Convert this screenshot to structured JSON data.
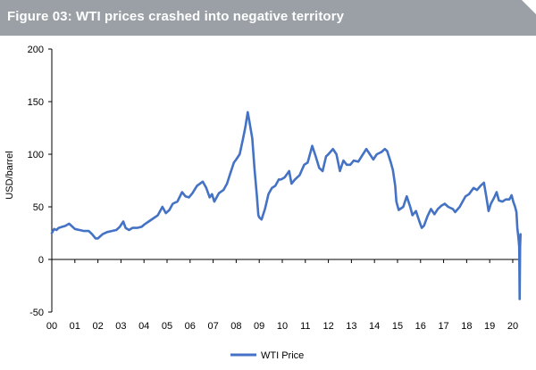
{
  "title": "Figure 03: WTI prices crashed into negative territory",
  "chart_data": {
    "type": "line",
    "ylabel": "USD/barrel",
    "ylim": [
      -50,
      200
    ],
    "yticks": [
      -50,
      0,
      50,
      100,
      150,
      200
    ],
    "xlim": [
      2000,
      2020.35
    ],
    "xticks": [
      {
        "label": "00",
        "x": 2000
      },
      {
        "label": "01",
        "x": 2001
      },
      {
        "label": "02",
        "x": 2002
      },
      {
        "label": "03",
        "x": 2003
      },
      {
        "label": "04",
        "x": 2004
      },
      {
        "label": "05",
        "x": 2005
      },
      {
        "label": "06",
        "x": 2006
      },
      {
        "label": "07",
        "x": 2007
      },
      {
        "label": "08",
        "x": 2008
      },
      {
        "label": "09",
        "x": 2009
      },
      {
        "label": "10",
        "x": 2010
      },
      {
        "label": "11",
        "x": 2011
      },
      {
        "label": "12",
        "x": 2012
      },
      {
        "label": "13",
        "x": 2013
      },
      {
        "label": "14",
        "x": 2014
      },
      {
        "label": "15",
        "x": 2015
      },
      {
        "label": "16",
        "x": 2016
      },
      {
        "label": "17",
        "x": 2017
      },
      {
        "label": "18",
        "x": 2018
      },
      {
        "label": "19",
        "x": 2019
      },
      {
        "label": "20",
        "x": 2020
      }
    ],
    "grid": false,
    "legend": {
      "position": "bottom-center"
    },
    "series": [
      {
        "name": "WTI Price",
        "color": "#4472c4",
        "points": [
          [
            2000.0,
            25
          ],
          [
            2000.1,
            29
          ],
          [
            2000.2,
            28
          ],
          [
            2000.3,
            30
          ],
          [
            2000.45,
            31
          ],
          [
            2000.6,
            32
          ],
          [
            2000.75,
            34
          ],
          [
            2000.9,
            31
          ],
          [
            2001.0,
            29
          ],
          [
            2001.2,
            28
          ],
          [
            2001.4,
            27
          ],
          [
            2001.6,
            27
          ],
          [
            2001.75,
            24
          ],
          [
            2001.9,
            20
          ],
          [
            2002.0,
            20
          ],
          [
            2002.2,
            24
          ],
          [
            2002.4,
            26
          ],
          [
            2002.6,
            27
          ],
          [
            2002.8,
            28
          ],
          [
            2002.95,
            31
          ],
          [
            2003.1,
            36
          ],
          [
            2003.2,
            30
          ],
          [
            2003.35,
            28
          ],
          [
            2003.5,
            30
          ],
          [
            2003.7,
            30
          ],
          [
            2003.9,
            31
          ],
          [
            2004.0,
            33
          ],
          [
            2004.2,
            36
          ],
          [
            2004.4,
            39
          ],
          [
            2004.6,
            42
          ],
          [
            2004.8,
            50
          ],
          [
            2004.95,
            44
          ],
          [
            2005.1,
            47
          ],
          [
            2005.25,
            53
          ],
          [
            2005.45,
            55
          ],
          [
            2005.65,
            64
          ],
          [
            2005.8,
            60
          ],
          [
            2005.95,
            59
          ],
          [
            2006.1,
            63
          ],
          [
            2006.3,
            70
          ],
          [
            2006.55,
            74
          ],
          [
            2006.7,
            68
          ],
          [
            2006.85,
            59
          ],
          [
            2006.95,
            62
          ],
          [
            2007.05,
            55
          ],
          [
            2007.25,
            63
          ],
          [
            2007.45,
            66
          ],
          [
            2007.6,
            72
          ],
          [
            2007.75,
            82
          ],
          [
            2007.9,
            92
          ],
          [
            2008.0,
            95
          ],
          [
            2008.15,
            100
          ],
          [
            2008.3,
            115
          ],
          [
            2008.4,
            126
          ],
          [
            2008.5,
            140
          ],
          [
            2008.55,
            134
          ],
          [
            2008.7,
            115
          ],
          [
            2008.8,
            85
          ],
          [
            2008.9,
            60
          ],
          [
            2008.96,
            42
          ],
          [
            2009.0,
            40
          ],
          [
            2009.1,
            38
          ],
          [
            2009.25,
            48
          ],
          [
            2009.4,
            62
          ],
          [
            2009.55,
            68
          ],
          [
            2009.7,
            70
          ],
          [
            2009.85,
            76
          ],
          [
            2009.95,
            76
          ],
          [
            2010.1,
            78
          ],
          [
            2010.3,
            84
          ],
          [
            2010.4,
            72
          ],
          [
            2010.55,
            76
          ],
          [
            2010.75,
            80
          ],
          [
            2010.95,
            90
          ],
          [
            2011.1,
            92
          ],
          [
            2011.3,
            108
          ],
          [
            2011.45,
            98
          ],
          [
            2011.6,
            87
          ],
          [
            2011.75,
            84
          ],
          [
            2011.9,
            98
          ],
          [
            2012.0,
            100
          ],
          [
            2012.2,
            105
          ],
          [
            2012.35,
            100
          ],
          [
            2012.5,
            84
          ],
          [
            2012.65,
            94
          ],
          [
            2012.8,
            90
          ],
          [
            2012.95,
            90
          ],
          [
            2013.1,
            94
          ],
          [
            2013.3,
            93
          ],
          [
            2013.5,
            100
          ],
          [
            2013.65,
            105
          ],
          [
            2013.8,
            100
          ],
          [
            2013.95,
            95
          ],
          [
            2014.1,
            100
          ],
          [
            2014.3,
            102
          ],
          [
            2014.45,
            105
          ],
          [
            2014.55,
            103
          ],
          [
            2014.7,
            93
          ],
          [
            2014.8,
            85
          ],
          [
            2014.9,
            70
          ],
          [
            2014.95,
            55
          ],
          [
            2015.05,
            47
          ],
          [
            2015.25,
            50
          ],
          [
            2015.4,
            60
          ],
          [
            2015.55,
            50
          ],
          [
            2015.65,
            42
          ],
          [
            2015.8,
            46
          ],
          [
            2015.95,
            36
          ],
          [
            2016.05,
            30
          ],
          [
            2016.15,
            32
          ],
          [
            2016.3,
            41
          ],
          [
            2016.45,
            48
          ],
          [
            2016.6,
            43
          ],
          [
            2016.75,
            48
          ],
          [
            2016.9,
            51
          ],
          [
            2017.05,
            53
          ],
          [
            2017.2,
            50
          ],
          [
            2017.4,
            48
          ],
          [
            2017.5,
            45
          ],
          [
            2017.7,
            50
          ],
          [
            2017.85,
            56
          ],
          [
            2017.95,
            60
          ],
          [
            2018.1,
            62
          ],
          [
            2018.3,
            68
          ],
          [
            2018.45,
            66
          ],
          [
            2018.6,
            70
          ],
          [
            2018.75,
            73
          ],
          [
            2018.85,
            60
          ],
          [
            2018.95,
            46
          ],
          [
            2019.05,
            53
          ],
          [
            2019.2,
            59
          ],
          [
            2019.3,
            64
          ],
          [
            2019.4,
            56
          ],
          [
            2019.55,
            55
          ],
          [
            2019.7,
            57
          ],
          [
            2019.85,
            57
          ],
          [
            2019.95,
            61
          ],
          [
            2020.02,
            55
          ],
          [
            2020.1,
            50
          ],
          [
            2020.16,
            45
          ],
          [
            2020.2,
            30
          ],
          [
            2020.25,
            20
          ],
          [
            2020.28,
            12
          ],
          [
            2020.3,
            -37.6
          ],
          [
            2020.32,
            12
          ],
          [
            2020.34,
            24
          ]
        ]
      }
    ]
  }
}
